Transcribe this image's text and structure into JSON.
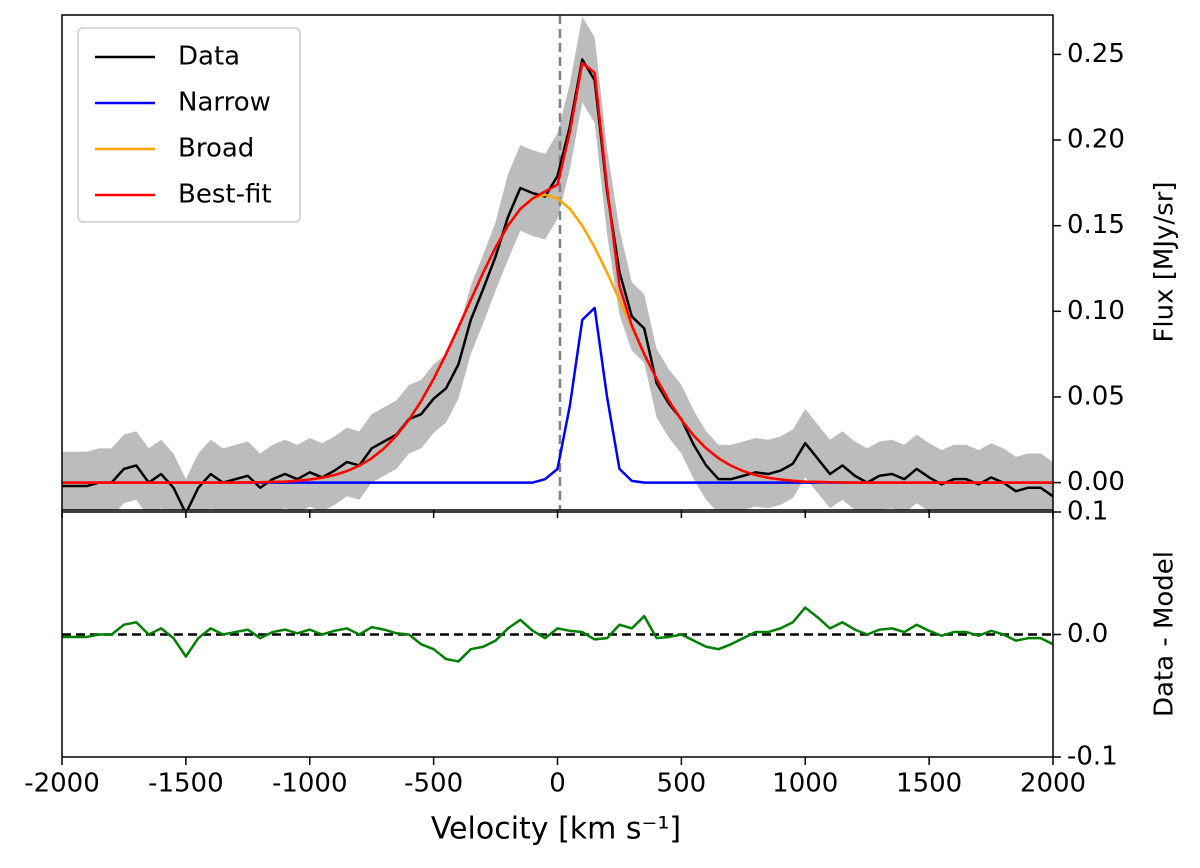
{
  "chart_data": [
    {
      "type": "line",
      "ylabel": "Flux [MJy/sr]",
      "x": [
        -2000,
        -1950,
        -1900,
        -1850,
        -1800,
        -1750,
        -1700,
        -1650,
        -1600,
        -1550,
        -1500,
        -1450,
        -1400,
        -1350,
        -1300,
        -1250,
        -1200,
        -1150,
        -1100,
        -1050,
        -1000,
        -950,
        -900,
        -850,
        -800,
        -750,
        -700,
        -650,
        -600,
        -550,
        -500,
        -450,
        -400,
        -350,
        -300,
        -250,
        -200,
        -150,
        -100,
        -50,
        0,
        50,
        100,
        150,
        200,
        250,
        300,
        350,
        400,
        450,
        500,
        550,
        600,
        650,
        700,
        750,
        800,
        850,
        900,
        950,
        1000,
        1050,
        1100,
        1150,
        1200,
        1250,
        1300,
        1350,
        1400,
        1450,
        1500,
        1550,
        1600,
        1650,
        1700,
        1750,
        1800,
        1850,
        1900,
        1950,
        2000
      ],
      "series": [
        {
          "name": "Data",
          "color": "#000000",
          "band_color": "#bcbcbc",
          "values": [
            -0.002,
            -0.002,
            -0.002,
            0,
            0,
            0.008,
            0.01,
            0,
            0.005,
            -0.003,
            -0.018,
            -0.003,
            0.005,
            0,
            0.002,
            0.004,
            -0.003,
            0.002,
            0.005,
            0.002,
            0.006,
            0.003,
            0.007,
            0.012,
            0.01,
            0.02,
            0.024,
            0.028,
            0.037,
            0.04,
            0.049,
            0.055,
            0.069,
            0.095,
            0.113,
            0.132,
            0.155,
            0.172,
            0.169,
            0.167,
            0.179,
            0.208,
            0.247,
            0.235,
            0.17,
            0.123,
            0.097,
            0.09,
            0.058,
            0.046,
            0.037,
            0.022,
            0.01,
            0.002,
            0.002,
            0.004,
            0.006,
            0.005,
            0.007,
            0.011,
            0.023,
            0.014,
            0.005,
            0.01,
            0.004,
            0,
            0.004,
            0.005,
            0.002,
            0.008,
            0.003,
            -0.001,
            0.002,
            0.002,
            -0.001,
            0.003,
            0,
            -0.005,
            -0.003,
            -0.003,
            -0.008
          ],
          "errors": [
            0.02,
            0.02,
            0.02,
            0.02,
            0.02,
            0.02,
            0.02,
            0.02,
            0.02,
            0.02,
            0.02,
            0.02,
            0.02,
            0.02,
            0.02,
            0.02,
            0.02,
            0.02,
            0.02,
            0.02,
            0.02,
            0.02,
            0.02,
            0.02,
            0.02,
            0.02,
            0.02,
            0.02,
            0.02,
            0.02,
            0.02,
            0.02,
            0.02,
            0.02,
            0.02,
            0.02,
            0.025,
            0.025,
            0.025,
            0.025,
            0.025,
            0.025,
            0.025,
            0.025,
            0.025,
            0.025,
            0.02,
            0.02,
            0.02,
            0.02,
            0.02,
            0.02,
            0.02,
            0.02,
            0.02,
            0.02,
            0.02,
            0.02,
            0.02,
            0.02,
            0.02,
            0.02,
            0.02,
            0.02,
            0.02,
            0.02,
            0.02,
            0.02,
            0.02,
            0.02,
            0.02,
            0.02,
            0.02,
            0.02,
            0.02,
            0.02,
            0.02,
            0.02,
            0.02,
            0.02,
            0.02
          ]
        },
        {
          "name": "Narrow",
          "color": "#0000ff",
          "values": [
            0,
            0,
            0,
            0,
            0,
            0,
            0,
            0,
            0,
            0,
            0,
            0,
            0,
            0,
            0,
            0,
            0,
            0,
            0,
            0,
            0,
            0,
            0,
            0,
            0,
            0,
            0,
            0,
            0,
            0,
            0,
            0,
            0,
            0,
            0,
            0,
            0,
            0,
            0,
            0.002,
            0.008,
            0.045,
            0.095,
            0.102,
            0.05,
            0.008,
            0.001,
            0,
            0,
            0,
            0,
            0,
            0,
            0,
            0,
            0,
            0,
            0,
            0,
            0,
            0,
            0,
            0,
            0,
            0,
            0,
            0,
            0,
            0,
            0,
            0,
            0,
            0,
            0,
            0,
            0,
            0,
            0,
            0,
            0,
            0
          ]
        },
        {
          "name": "Broad",
          "color": "#ffa500",
          "values": [
            0,
            0,
            0,
            0,
            0,
            0,
            0,
            0,
            0,
            0,
            0,
            0,
            0,
            0,
            0,
            0.0001,
            0.0002,
            0.0004,
            0.0006,
            0.0011,
            0.0018,
            0.0028,
            0.0044,
            0.0067,
            0.0099,
            0.0142,
            0.02,
            0.0274,
            0.0366,
            0.0477,
            0.0606,
            0.075,
            0.0906,
            0.1067,
            0.1226,
            0.1373,
            0.15,
            0.1598,
            0.1659,
            0.168,
            0.1659,
            0.1598,
            0.15,
            0.1373,
            0.1226,
            0.1067,
            0.0906,
            0.075,
            0.0606,
            0.0477,
            0.0366,
            0.0274,
            0.02,
            0.0142,
            0.0099,
            0.0067,
            0.0044,
            0.0028,
            0.0018,
            0.0011,
            0.0006,
            0.0004,
            0.0002,
            0.0001,
            0,
            0,
            0,
            0,
            0,
            0,
            0,
            0,
            0,
            0,
            0,
            0,
            0,
            0,
            0,
            0,
            0
          ]
        },
        {
          "name": "Best-fit",
          "color": "#ff0000",
          "values": [
            0,
            0,
            0,
            0,
            0,
            0,
            0,
            0,
            0,
            0,
            0,
            0,
            0,
            0,
            0,
            0.0001,
            0.0002,
            0.0004,
            0.0006,
            0.0011,
            0.0018,
            0.0028,
            0.0044,
            0.0067,
            0.0099,
            0.0142,
            0.02,
            0.0274,
            0.0366,
            0.0477,
            0.0606,
            0.075,
            0.0906,
            0.1067,
            0.1226,
            0.1373,
            0.15,
            0.1598,
            0.1659,
            0.17,
            0.1739,
            0.2048,
            0.245,
            0.2393,
            0.1726,
            0.1147,
            0.0916,
            0.075,
            0.0606,
            0.0477,
            0.0366,
            0.0274,
            0.02,
            0.0142,
            0.0099,
            0.0067,
            0.0044,
            0.0028,
            0.0018,
            0.0011,
            0.0006,
            0.0004,
            0.0002,
            0.0001,
            0,
            0,
            0,
            0,
            0,
            0,
            0,
            0,
            0,
            0,
            0,
            0,
            0,
            0,
            0,
            0,
            0
          ]
        }
      ],
      "vline": {
        "x": 10,
        "color": "#808080"
      },
      "legend": "upper left",
      "xlim": [
        -2000,
        2000
      ],
      "xticks": [
        -2000,
        -1500,
        -1000,
        -500,
        0,
        500,
        1000,
        1500,
        2000
      ],
      "ylim": [
        -0.016,
        0.273
      ],
      "yticks": [
        {
          "value": 0,
          "label": "0.00"
        },
        0.05,
        {
          "value": 0.1,
          "label": "0.10"
        },
        0.15,
        {
          "value": 0.2,
          "label": "0.20"
        },
        0.25
      ]
    },
    {
      "type": "line",
      "xlabel": "Velocity [km s⁻¹]",
      "ylabel": "Data - Model",
      "x": [
        -2000,
        -1950,
        -1900,
        -1850,
        -1800,
        -1750,
        -1700,
        -1650,
        -1600,
        -1550,
        -1500,
        -1450,
        -1400,
        -1350,
        -1300,
        -1250,
        -1200,
        -1150,
        -1100,
        -1050,
        -1000,
        -950,
        -900,
        -850,
        -800,
        -750,
        -700,
        -650,
        -600,
        -550,
        -500,
        -450,
        -400,
        -350,
        -300,
        -250,
        -200,
        -150,
        -100,
        -50,
        0,
        50,
        100,
        150,
        200,
        250,
        300,
        350,
        400,
        450,
        500,
        550,
        600,
        650,
        700,
        750,
        800,
        850,
        900,
        950,
        1000,
        1050,
        1100,
        1150,
        1200,
        1250,
        1300,
        1350,
        1400,
        1450,
        1500,
        1550,
        1600,
        1650,
        1700,
        1750,
        1800,
        1850,
        1900,
        1950,
        2000
      ],
      "color": "#008000",
      "values": [
        -0.002,
        -0.002,
        -0.002,
        0,
        0,
        0.008,
        0.01,
        0,
        0.005,
        -0.003,
        -0.018,
        -0.003,
        0.005,
        0,
        0.002,
        0.004,
        -0.003,
        0.002,
        0.004,
        0.001,
        0.004,
        0,
        0.003,
        0.005,
        0,
        0.006,
        0.004,
        0.001,
        0,
        -0.008,
        -0.012,
        -0.02,
        -0.022,
        -0.012,
        -0.01,
        -0.005,
        0.005,
        0.012,
        0.003,
        -0.003,
        0.005,
        0.003,
        0.002,
        -0.004,
        -0.003,
        0.008,
        0.005,
        0.015,
        -0.003,
        -0.002,
        0,
        -0.005,
        -0.01,
        -0.012,
        -0.008,
        -0.003,
        0.002,
        0.002,
        0.005,
        0.01,
        0.022,
        0.014,
        0.005,
        0.01,
        0.004,
        0,
        0.004,
        0.005,
        0.002,
        0.008,
        0.003,
        -0.001,
        0.002,
        0.002,
        -0.001,
        0.003,
        0,
        -0.005,
        -0.003,
        -0.003,
        -0.008
      ],
      "hline": {
        "y": 0,
        "color": "#000000"
      },
      "xlim": [
        -2000,
        2000
      ],
      "xticks": [
        -2000,
        -1500,
        -1000,
        -500,
        0,
        500,
        1000,
        1500,
        2000
      ],
      "ylim": [
        -0.1,
        0.1
      ],
      "yticks": [
        -0.1,
        {
          "value": 0,
          "label": "0.0"
        },
        0.1
      ]
    }
  ]
}
